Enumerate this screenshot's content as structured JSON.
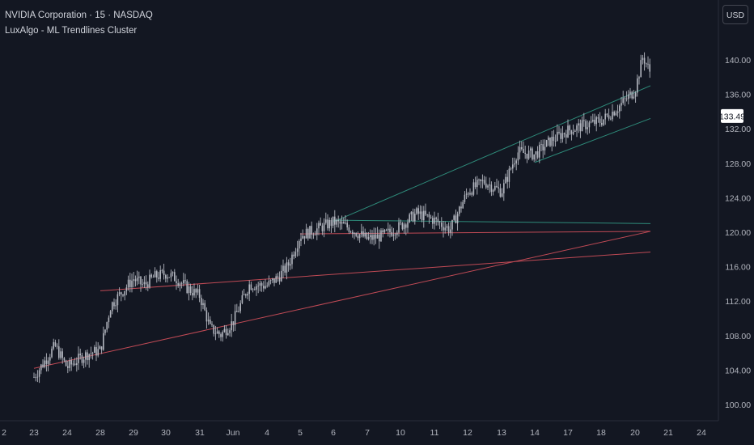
{
  "legend": {
    "symbol_line": "NVIDIA Corporation · 15 · NASDAQ",
    "indicator_line": "LuxAlgo - ML Trendlines Cluster"
  },
  "currency": "USD",
  "colors": {
    "background": "#131722",
    "candle": "#b2b5be",
    "teal_line": "#2e8b7a",
    "red_line": "#c04a55",
    "price_label_bg": "#ffffff",
    "price_label_text": "#131722"
  },
  "price_label": "133.49",
  "chart_data": {
    "type": "line",
    "title": "",
    "xlabel": "",
    "ylabel": "",
    "x_tick_labels": [
      "2",
      "23",
      "24",
      "28",
      "29",
      "30",
      "31",
      "Jun",
      "4",
      "5",
      "6",
      "7",
      "10",
      "11",
      "12",
      "13",
      "14",
      "17",
      "18",
      "20",
      "21",
      "24"
    ],
    "y_ticks": [
      100.0,
      104.0,
      108.0,
      112.0,
      116.0,
      120.0,
      124.0,
      128.0,
      132.0,
      136.0,
      140.0
    ],
    "y_tick_labels": [
      "100.00",
      "104.00",
      "108.00",
      "112.00",
      "116.00",
      "120.00",
      "124.00",
      "128.00",
      "132.00",
      "136.00",
      "140.00"
    ],
    "ylim": [
      98.0,
      144.0
    ],
    "last_price": 133.49,
    "price_path": [
      [
        "23",
        103.2
      ],
      [
        "23",
        105.0
      ],
      [
        "23",
        106.8
      ],
      [
        "24",
        104.3
      ],
      [
        "24",
        105.2
      ],
      [
        "24",
        105.9
      ],
      [
        "28",
        106.3
      ],
      [
        "28",
        111.5
      ],
      [
        "28",
        113.0
      ],
      [
        "29",
        114.6
      ],
      [
        "29",
        113.8
      ],
      [
        "29",
        114.8
      ],
      [
        "30",
        115.2
      ],
      [
        "30",
        114.6
      ],
      [
        "30",
        113.5
      ],
      [
        "31",
        112.6
      ],
      [
        "31",
        108.8
      ],
      [
        "31",
        108.1
      ],
      [
        "Jun",
        109.6
      ],
      [
        "Jun",
        113.9
      ],
      [
        "4",
        113.8
      ],
      [
        "4",
        114.7
      ],
      [
        "4",
        116.1
      ],
      [
        "5",
        119.6
      ],
      [
        "5",
        120.3
      ],
      [
        "6",
        121.2
      ],
      [
        "6",
        120.5
      ],
      [
        "7",
        119.2
      ],
      [
        "7",
        119.6
      ],
      [
        "10",
        120.7
      ],
      [
        "10",
        122.2
      ],
      [
        "11",
        121.4
      ],
      [
        "11",
        120.3
      ],
      [
        "12",
        124.7
      ],
      [
        "12",
        125.9
      ],
      [
        "13",
        124.7
      ],
      [
        "13",
        129.3
      ],
      [
        "14",
        129.0
      ],
      [
        "14",
        130.6
      ],
      [
        "17",
        131.8
      ],
      [
        "17",
        132.4
      ],
      [
        "18",
        132.9
      ],
      [
        "18",
        134.4
      ],
      [
        "20",
        136.5
      ],
      [
        "20",
        140.4
      ],
      [
        "20",
        138.4
      ],
      [
        "20",
        133.5
      ]
    ],
    "trendlines": [
      {
        "color": "teal",
        "start": [
          "6",
          121.2
        ],
        "end": [
          "20",
          137.0
        ]
      },
      {
        "color": "teal",
        "start": [
          "14",
          128.1
        ],
        "end": [
          "20",
          133.2
        ]
      },
      {
        "color": "teal",
        "start": [
          "6",
          121.4
        ],
        "end": [
          "20",
          121.0
        ]
      },
      {
        "color": "red",
        "start": [
          "5",
          119.8
        ],
        "end": [
          "20",
          120.1
        ]
      },
      {
        "color": "red",
        "start": [
          "23",
          104.2
        ],
        "end": [
          "20",
          120.1
        ]
      },
      {
        "color": "red",
        "start": [
          "28",
          113.2
        ],
        "end": [
          "20",
          117.7
        ]
      }
    ]
  }
}
